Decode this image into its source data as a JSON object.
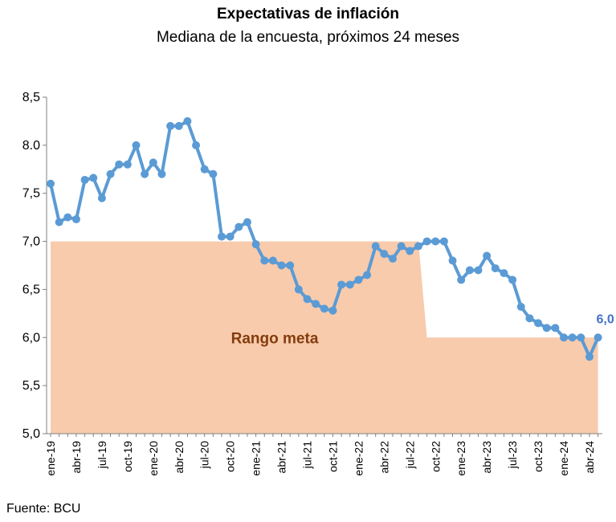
{
  "chart_data": {
    "type": "line",
    "title": "Expectativas de inflación",
    "subtitle": "Mediana de la encuesta, próximos 24 meses",
    "source": "Fuente: BCU",
    "ylim": [
      5.0,
      8.5
    ],
    "yticks": [
      "5,0",
      "5,5",
      "6,0",
      "6,5",
      "7,0",
      "7,5",
      "8.0",
      "8,5"
    ],
    "ytick_values": [
      5.0,
      5.5,
      6.0,
      6.5,
      7.0,
      7.5,
      8.0,
      8.5
    ],
    "xtick_labels": [
      "ene-19",
      "abr-19",
      "jul-19",
      "oct-19",
      "ene-20",
      "abr-20",
      "jul-20",
      "oct-20",
      "ene-21",
      "abr-21",
      "jul-21",
      "oct-21",
      "ene-22",
      "abr-22",
      "jul-22",
      "oct-22",
      "ene-23",
      "abr-23",
      "jul-23",
      "oct-23",
      "ene-24",
      "abr-24"
    ],
    "xtick_index": [
      0,
      3,
      6,
      9,
      12,
      15,
      18,
      21,
      24,
      27,
      30,
      33,
      36,
      39,
      42,
      45,
      48,
      51,
      54,
      57,
      60,
      63
    ],
    "series": [
      {
        "color": "#5B9BD5",
        "values": [
          7.6,
          7.2,
          7.25,
          7.23,
          7.64,
          7.66,
          7.45,
          7.7,
          7.8,
          7.8,
          8.0,
          7.7,
          7.82,
          7.7,
          8.2,
          8.2,
          8.25,
          8.0,
          7.75,
          7.7,
          7.05,
          7.05,
          7.15,
          7.2,
          6.97,
          6.8,
          6.8,
          6.75,
          6.75,
          6.5,
          6.4,
          6.35,
          6.3,
          6.28,
          6.55,
          6.55,
          6.6,
          6.65,
          6.95,
          6.87,
          6.82,
          6.95,
          6.9,
          6.95,
          7.0,
          7.0,
          7.0,
          6.8,
          6.6,
          6.7,
          6.7,
          6.85,
          6.72,
          6.67,
          6.6,
          6.32,
          6.2,
          6.15,
          6.1,
          6.1,
          6.0,
          6.0,
          6.0,
          5.8,
          6.0
        ]
      }
    ],
    "target_range": {
      "label": "Rango meta",
      "color": "#F8CBAD",
      "lower": 5.0,
      "upper_before": 7.0,
      "upper_after": 6.0,
      "change_from_index": 43,
      "change_to_index": 44
    },
    "last_value_label": "6,0"
  }
}
